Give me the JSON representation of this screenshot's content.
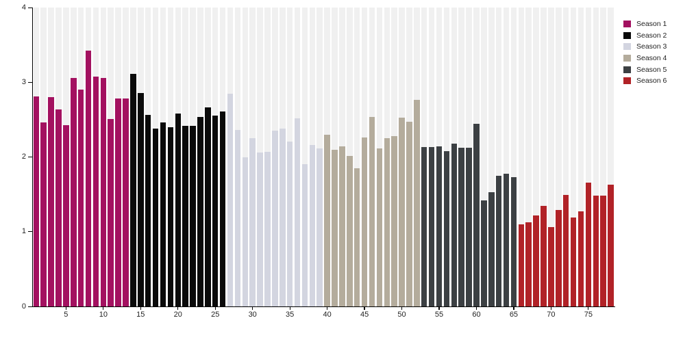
{
  "chart_data": {
    "type": "bar",
    "title": "",
    "xlabel": "",
    "ylabel": "",
    "ylim": [
      0,
      4
    ],
    "yticks": [
      0,
      1,
      2,
      3,
      4
    ],
    "xticks": [
      5,
      10,
      15,
      20,
      25,
      30,
      35,
      40,
      45,
      50,
      55,
      60,
      65,
      70,
      75
    ],
    "x_range": [
      1,
      78
    ],
    "bars_total": 78,
    "grid": "per-bar light gray background stripes, no horizontal gridlines",
    "legend_position": "top-right",
    "series": [
      {
        "name": "Season 1",
        "color": "#a31160",
        "episodes": [
          1,
          13
        ],
        "values": [
          2.81,
          2.46,
          2.8,
          2.64,
          2.43,
          3.06,
          2.9,
          3.42,
          3.08,
          3.06,
          2.51,
          2.78,
          2.78
        ]
      },
      {
        "name": "Season 2",
        "color": "#0a0a0a",
        "episodes": [
          14,
          26
        ],
        "values": [
          3.11,
          2.86,
          2.56,
          2.38,
          2.46,
          2.4,
          2.58,
          2.42,
          2.42,
          2.54,
          2.66,
          2.55,
          2.61
        ]
      },
      {
        "name": "Season 3",
        "color": "#d3d5e0",
        "episodes": [
          27,
          39
        ],
        "values": [
          2.85,
          2.36,
          2.0,
          2.25,
          2.06,
          2.07,
          2.35,
          2.38,
          2.21,
          2.52,
          1.9,
          2.16,
          2.11
        ]
      },
      {
        "name": "Season 4",
        "color": "#b4ac9c",
        "episodes": [
          40,
          52
        ],
        "values": [
          2.3,
          2.1,
          2.14,
          2.01,
          1.85,
          2.26,
          2.54,
          2.11,
          2.25,
          2.28,
          2.53,
          2.47,
          2.76
        ]
      },
      {
        "name": "Season 5",
        "color": "#3c4043",
        "episodes": [
          53,
          65
        ],
        "values": [
          2.13,
          2.13,
          2.14,
          2.08,
          2.18,
          2.12,
          2.12,
          2.44,
          1.42,
          1.53,
          1.75,
          1.78,
          1.73
        ]
      },
      {
        "name": "Season 6",
        "color": "#b12227",
        "episodes": [
          66,
          78
        ],
        "values": [
          1.1,
          1.13,
          1.22,
          1.35,
          1.06,
          1.29,
          1.49,
          1.19,
          1.27,
          1.66,
          1.48,
          1.48,
          1.63
        ]
      }
    ]
  },
  "colors": {
    "background": "#ffffff",
    "stripe": "#f0f0f0",
    "axis": "#000000",
    "tick_label": "#222222"
  }
}
